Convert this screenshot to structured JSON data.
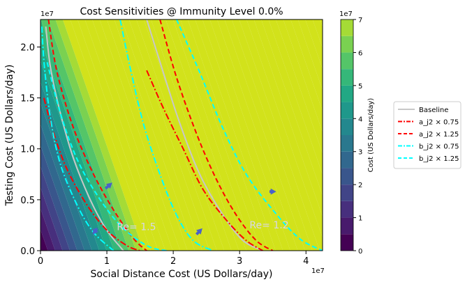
{
  "chart_data": {
    "type": "contour",
    "title": "Cost Sensitivities @ Immunity Level 0.0%",
    "xlabel": "Social Distance Cost (US Dollars/day)",
    "ylabel": "Testing Cost (US Dollars/day)",
    "x_multiplier": "1e7",
    "y_multiplier": "1e7",
    "xlim": [
      0,
      4.25
    ],
    "ylim": [
      0,
      2.27
    ],
    "x_ticks": [
      0,
      1,
      2,
      3,
      4
    ],
    "x_tick_labels": [
      "0",
      "1",
      "2",
      "3",
      "4"
    ],
    "y_ticks": [
      0.0,
      0.5,
      1.0,
      1.5,
      2.0
    ],
    "y_tick_labels": [
      "0.0",
      "0.5",
      "1.0",
      "1.5",
      "2.0"
    ],
    "colorbar": {
      "label": "Cost (US Dollars/day)",
      "multiplier": "1e7",
      "ticks": [
        0,
        1,
        2,
        3,
        4,
        5,
        6,
        7
      ],
      "tick_labels": [
        "0",
        "1",
        "2",
        "3",
        "4",
        "5",
        "6",
        "7"
      ],
      "range": [
        0,
        7
      ],
      "levels": 14,
      "colors": [
        "#440154",
        "#481a6c",
        "#472f7d",
        "#414487",
        "#39568c",
        "#31688e",
        "#2a788e",
        "#23888e",
        "#1f988b",
        "#22a884",
        "#35b779",
        "#54c568",
        "#7ad151",
        "#a5db36",
        "#d2e21b"
      ]
    },
    "cost_field": {
      "cx": 1.55,
      "cy": 2.9
    },
    "legend": {
      "placement": "outside-right",
      "entries": [
        {
          "label": "Baseline",
          "color": "#c8c8c8",
          "style": "solid"
        },
        {
          "label": "a_j2 × 0.75",
          "color": "#ff0000",
          "style": "dashdot"
        },
        {
          "label": "a_j2 × 1.25",
          "color": "#ff0000",
          "style": "dashed"
        },
        {
          "label": "b_j2 × 0.75",
          "color": "#00ffff",
          "style": "dashdot"
        },
        {
          "label": "b_j2 × 1.25",
          "color": "#00ffff",
          "style": "dashed"
        }
      ]
    },
    "series": [
      {
        "name": "Baseline",
        "group": "Re=1.5",
        "color": "#c8c8c8",
        "style": "solid",
        "points": [
          [
            0.08,
            2.2
          ],
          [
            0.15,
            1.8
          ],
          [
            0.3,
            1.35
          ],
          [
            0.5,
            0.9
          ],
          [
            0.75,
            0.5
          ],
          [
            1.0,
            0.2
          ],
          [
            1.25,
            0.0
          ]
        ]
      },
      {
        "name": "a_j2 × 0.75",
        "group": "Re=1.5",
        "color": "#ff0000",
        "style": "dashdot",
        "points": [
          [
            0.05,
            1.5
          ],
          [
            0.2,
            1.15
          ],
          [
            0.4,
            0.8
          ],
          [
            0.7,
            0.45
          ],
          [
            1.0,
            0.2
          ],
          [
            1.3,
            0.05
          ],
          [
            1.5,
            0.0
          ]
        ]
      },
      {
        "name": "a_j2 × 1.25",
        "group": "Re=1.5",
        "color": "#ff0000",
        "style": "dashed",
        "points": [
          [
            0.12,
            2.27
          ],
          [
            0.25,
            1.75
          ],
          [
            0.5,
            1.2
          ],
          [
            0.8,
            0.75
          ],
          [
            1.1,
            0.4
          ],
          [
            1.4,
            0.12
          ],
          [
            1.6,
            0.0
          ]
        ]
      },
      {
        "name": "b_j2 × 0.75",
        "group": "Re=1.5",
        "color": "#00ffff",
        "style": "dashdot",
        "points": [
          [
            0.02,
            2.2
          ],
          [
            0.06,
            1.8
          ],
          [
            0.15,
            1.3
          ],
          [
            0.3,
            0.85
          ],
          [
            0.55,
            0.45
          ],
          [
            0.8,
            0.18
          ],
          [
            1.1,
            0.0
          ]
        ]
      },
      {
        "name": "b_j2 × 1.25",
        "group": "Re=1.5",
        "color": "#00ffff",
        "style": "dashed",
        "points": [
          [
            0.1,
            1.85
          ],
          [
            0.3,
            1.35
          ],
          [
            0.55,
            0.9
          ],
          [
            0.85,
            0.55
          ],
          [
            1.2,
            0.25
          ],
          [
            1.6,
            0.05
          ],
          [
            1.9,
            0.0
          ]
        ]
      },
      {
        "name": "b_j2 × 0.75",
        "group": "Re=1.5",
        "color": "#00ffff",
        "style": "dashdot",
        "points": [
          [
            1.2,
            2.27
          ],
          [
            1.35,
            1.8
          ],
          [
            1.55,
            1.25
          ],
          [
            1.8,
            0.75
          ],
          [
            2.05,
            0.35
          ],
          [
            2.3,
            0.1
          ],
          [
            2.6,
            0.0
          ]
        ]
      },
      {
        "name": "Baseline",
        "group": "Re=1.2",
        "color": "#c8c8c8",
        "style": "solid",
        "points": [
          [
            1.6,
            2.27
          ],
          [
            1.85,
            1.75
          ],
          [
            2.1,
            1.25
          ],
          [
            2.4,
            0.75
          ],
          [
            2.75,
            0.35
          ],
          [
            3.05,
            0.1
          ],
          [
            3.35,
            0.0
          ]
        ]
      },
      {
        "name": "a_j2 × 0.75",
        "group": "Re=1.2",
        "color": "#ff0000",
        "style": "dashdot",
        "points": [
          [
            1.6,
            1.77
          ],
          [
            1.85,
            1.4
          ],
          [
            2.15,
            1.0
          ],
          [
            2.45,
            0.6
          ],
          [
            2.8,
            0.3
          ],
          [
            3.1,
            0.1
          ],
          [
            3.35,
            0.0
          ]
        ]
      },
      {
        "name": "a_j2 × 1.25",
        "group": "Re=1.2",
        "color": "#ff0000",
        "style": "dashed",
        "points": [
          [
            1.8,
            2.27
          ],
          [
            2.05,
            1.7
          ],
          [
            2.35,
            1.15
          ],
          [
            2.65,
            0.7
          ],
          [
            2.95,
            0.35
          ],
          [
            3.25,
            0.1
          ],
          [
            3.5,
            0.0
          ]
        ]
      },
      {
        "name": "b_j2 × 1.25",
        "group": "Re=1.2",
        "color": "#00ffff",
        "style": "dashed",
        "points": [
          [
            2.05,
            2.27
          ],
          [
            2.4,
            1.75
          ],
          [
            2.75,
            1.2
          ],
          [
            3.1,
            0.75
          ],
          [
            3.5,
            0.4
          ],
          [
            3.9,
            0.12
          ],
          [
            4.25,
            0.0
          ]
        ]
      }
    ],
    "annotations": [
      {
        "text": "Re= 1.5",
        "x": 1.15,
        "y": 0.2
      },
      {
        "text": "Re= 1.2",
        "x": 3.15,
        "y": 0.22
      }
    ],
    "arrows": [
      {
        "x": 0.98,
        "y": 0.61,
        "dx": 0.07,
        "dy": 0.04
      },
      {
        "x": 0.85,
        "y": 0.22,
        "dx": -0.04,
        "dy": -0.04
      },
      {
        "x": 2.35,
        "y": 0.16,
        "dx": 0.06,
        "dy": 0.04
      },
      {
        "x": 3.45,
        "y": 0.58,
        "dx": 0.06,
        "dy": 0.0
      }
    ]
  }
}
